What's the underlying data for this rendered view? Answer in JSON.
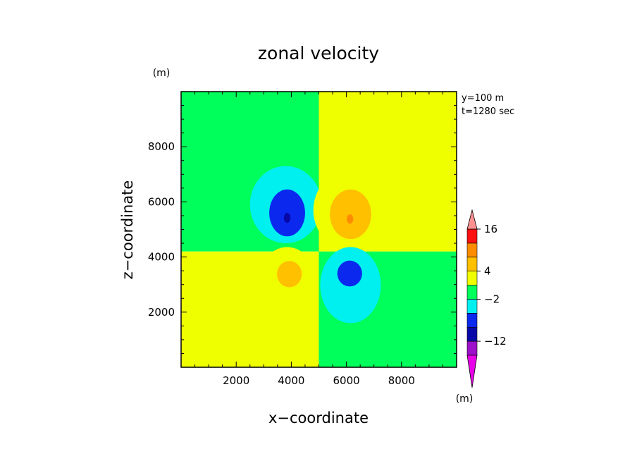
{
  "chart_data": {
    "type": "heatmap",
    "title": "zonal velocity",
    "xlabel": "x−coordinate",
    "ylabel": "z−coordinate",
    "x_unit": "(m)",
    "y_unit": "(m)",
    "info": [
      "y=100 m",
      "t=1280 sec"
    ],
    "xlim": [
      0,
      10000
    ],
    "ylim": [
      0,
      10000
    ],
    "xticks": [
      2000,
      4000,
      6000,
      8000
    ],
    "yticks": [
      2000,
      4000,
      6000,
      8000
    ],
    "xtick_labels": [
      "2000",
      "4000",
      "6000",
      "8000"
    ],
    "ytick_labels": [
      "2000",
      "4000",
      "6000",
      "8000"
    ],
    "colorbar": {
      "levels": [
        -20,
        -16,
        -12,
        -8,
        -4,
        -2,
        0,
        4,
        8,
        12,
        16,
        20
      ],
      "colors": [
        "#e800e8",
        "#9b10c8",
        "#0808a8",
        "#0a28ee",
        "#00f0f0",
        "#00ff5a",
        "#f0ff00",
        "#ffc000",
        "#ff8c00",
        "#ff1010",
        "#ff9090"
      ],
      "extend": "both",
      "labels": [
        {
          "value": 16,
          "text": "16"
        },
        {
          "value": 4,
          "text": "4"
        },
        {
          "value": -2,
          "text": "−2"
        },
        {
          "value": -12,
          "text": "−12"
        }
      ]
    },
    "background": {
      "upper_left": -1,
      "upper_right": 1,
      "lower_left": 1,
      "lower_right": -1,
      "vertical_boundary_x": 5000,
      "horizontal_boundary_z": 4200
    },
    "vortices": [
      {
        "name": "upper-left",
        "levels": [
          {
            "value": -3,
            "center": [
              3800,
              5900
            ],
            "radii": [
              1300,
              1400
            ]
          },
          {
            "value": -6,
            "center": [
              3850,
              5600
            ],
            "radii": [
              650,
              850
            ]
          },
          {
            "value": -10,
            "center": [
              3850,
              5420
            ],
            "radii": [
              120,
              180
            ]
          }
        ]
      },
      {
        "name": "upper-right",
        "levels": [
          {
            "value": 2,
            "center": [
              6150,
              5700
            ],
            "radii": [
              1350,
              1450
            ]
          },
          {
            "value": 5,
            "center": [
              6150,
              5550
            ],
            "radii": [
              750,
              900
            ]
          },
          {
            "value": 9,
            "center": [
              6130,
              5380
            ],
            "radii": [
              120,
              170
            ]
          }
        ]
      },
      {
        "name": "lower-left",
        "levels": [
          {
            "value": 2,
            "center": [
              3850,
              2980
            ],
            "radii": [
              1100,
              1380
            ]
          },
          {
            "value": 5,
            "center": [
              3930,
              3380
            ],
            "radii": [
              450,
              480
            ]
          }
        ]
      },
      {
        "name": "lower-right",
        "levels": [
          {
            "value": -3,
            "center": [
              6150,
              2980
            ],
            "radii": [
              1100,
              1380
            ]
          },
          {
            "value": -6,
            "center": [
              6120,
              3400
            ],
            "radii": [
              450,
              470
            ]
          }
        ]
      }
    ]
  }
}
